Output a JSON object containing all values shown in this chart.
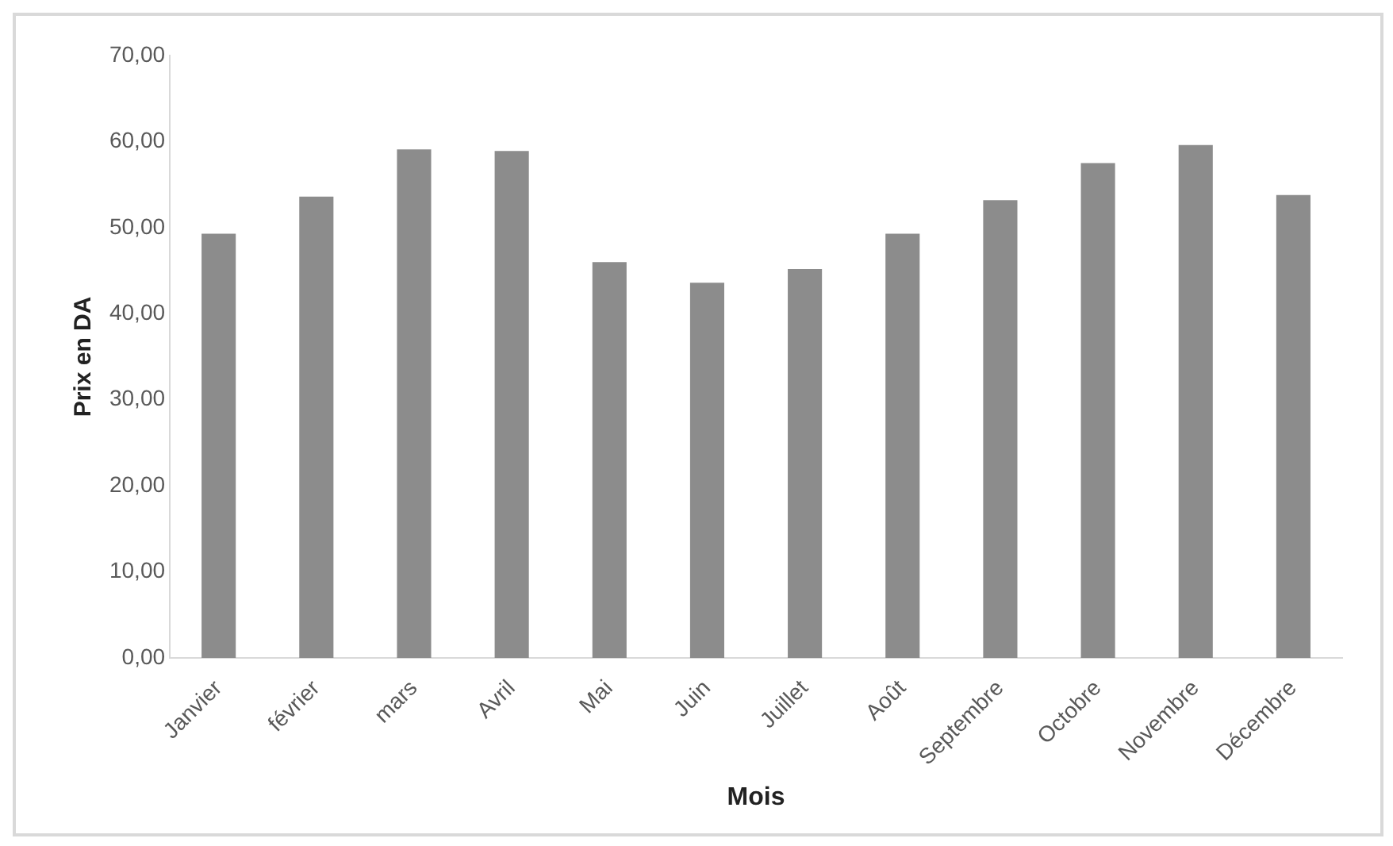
{
  "chart_data": {
    "type": "bar",
    "xlabel": "Mois",
    "ylabel": "Prix en DA",
    "categories": [
      "Janvier",
      "février",
      "mars",
      "Avril",
      "Mai",
      "Juin",
      "Juillet",
      "Août",
      "Septembre",
      "Octobre",
      "Novembre",
      "Décembre"
    ],
    "values": [
      49.3,
      53.6,
      59.1,
      58.9,
      46.0,
      43.6,
      45.2,
      49.3,
      53.2,
      57.5,
      59.6,
      53.8
    ],
    "color": "#8c8c8c",
    "ylim": [
      0,
      70
    ],
    "yticks": [
      {
        "value": 0,
        "label": "0,00"
      },
      {
        "value": 10,
        "label": "10,00"
      },
      {
        "value": 20,
        "label": "20,00"
      },
      {
        "value": 30,
        "label": "30,00"
      },
      {
        "value": 40,
        "label": "40,00"
      },
      {
        "value": 50,
        "label": "50,00"
      },
      {
        "value": 60,
        "label": "60,00"
      },
      {
        "value": 70,
        "label": "70,00"
      }
    ],
    "grid": false
  }
}
